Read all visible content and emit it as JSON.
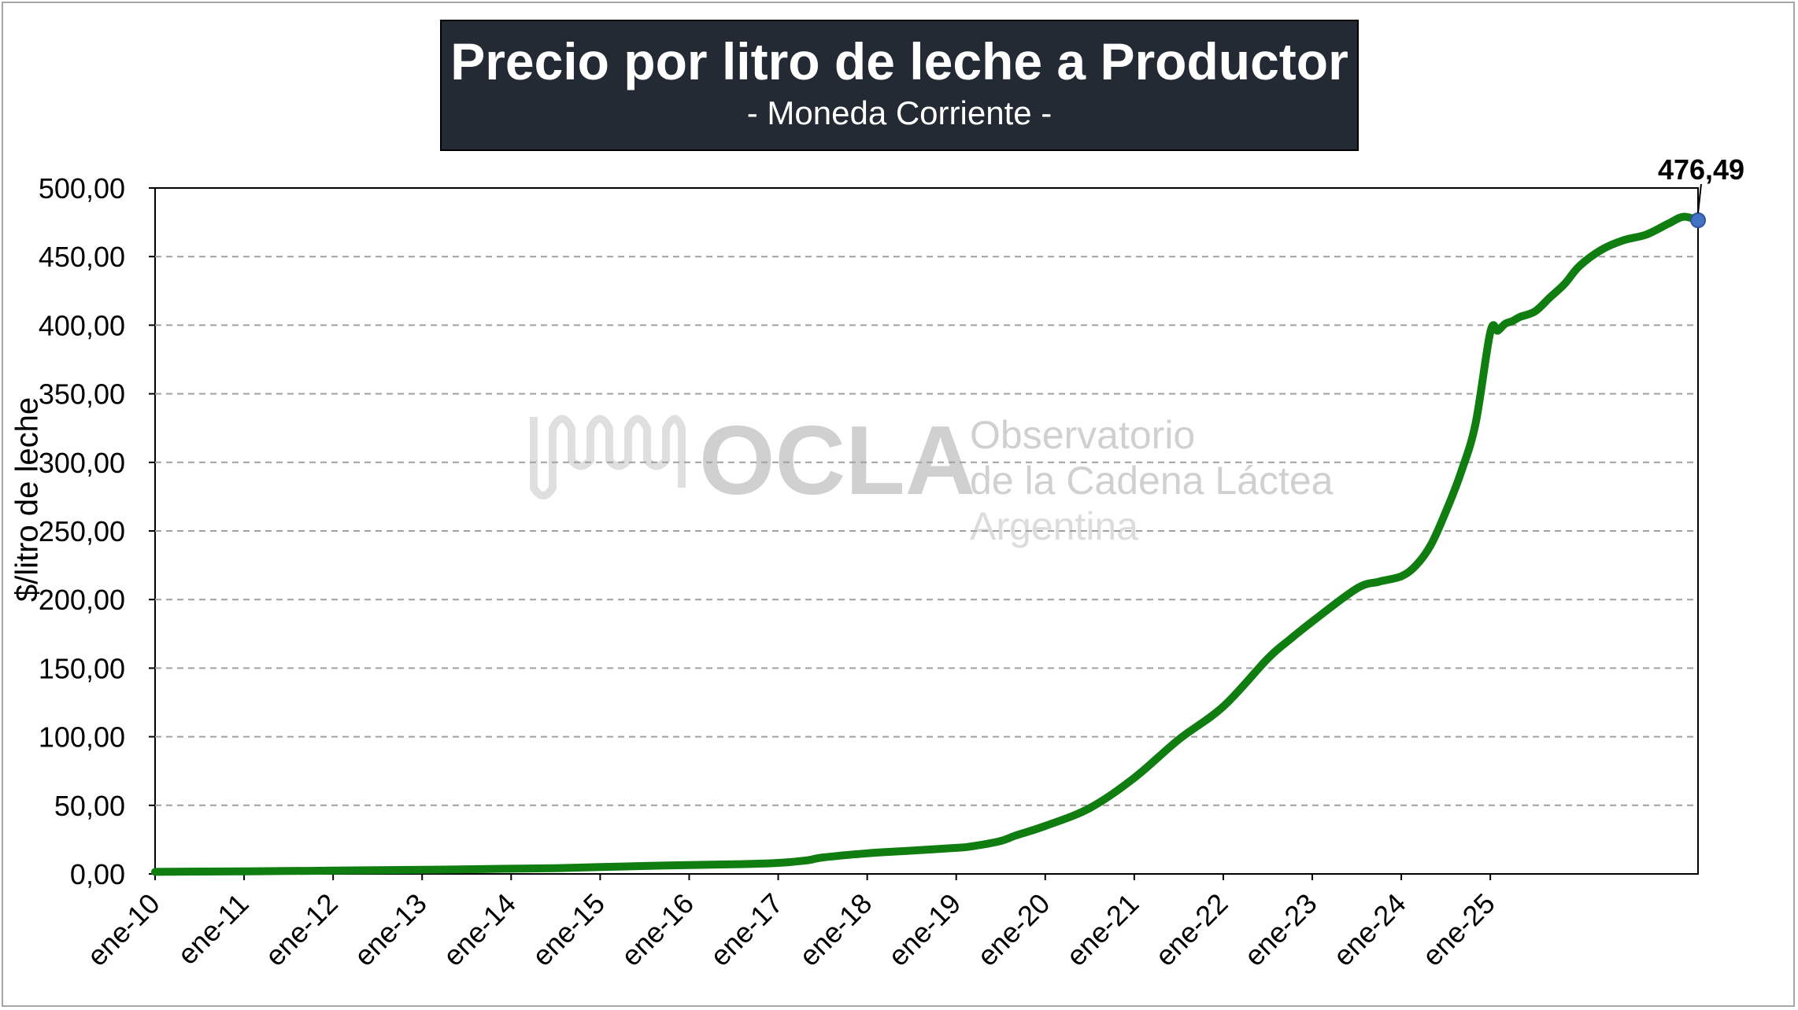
{
  "title": "Precio por litro de leche a Productor",
  "subtitle": "- Moneda Corriente -",
  "watermark": {
    "logo_text": "OCLA",
    "line1": "Observatorio",
    "line2": "de la Cadena Láctea",
    "line3": "Argentina"
  },
  "colors": {
    "line": "#0f7d0f",
    "marker": "#4472c4",
    "title_bg": "#232a33",
    "grid": "#a0a0a0"
  },
  "chart_data": {
    "type": "line",
    "title": "Precio por litro de leche a Productor",
    "subtitle": "- Moneda Corriente -",
    "xlabel": "",
    "ylabel": "$/litro de leche",
    "ylim": [
      0,
      500
    ],
    "yticks": [
      "0,00",
      "50,00",
      "100,00",
      "150,00",
      "200,00",
      "250,00",
      "300,00",
      "350,00",
      "400,00",
      "450,00",
      "500,00"
    ],
    "xticks": [
      "ene-10",
      "ene-11",
      "ene-12",
      "ene-13",
      "ene-14",
      "ene-15",
      "ene-16",
      "ene-17",
      "ene-18",
      "ene-19",
      "ene-20",
      "ene-21",
      "ene-22",
      "ene-23",
      "ene-24",
      "ene-25"
    ],
    "grid": "horizontal dashed",
    "legend": "none",
    "last_point_label": "476,49",
    "series": [
      {
        "x": [
          0,
          6,
          12,
          18,
          24,
          30,
          36,
          42,
          48,
          54,
          60,
          66,
          72,
          78,
          84,
          88,
          90,
          96,
          102,
          108,
          110,
          114,
          116,
          120,
          126,
          132,
          138,
          144,
          150,
          153,
          156,
          162,
          165,
          168,
          170,
          172,
          174,
          176,
          178,
          180,
          181,
          182,
          183,
          184,
          186,
          188,
          190,
          192,
          195,
          198,
          201,
          204,
          206,
          208
        ],
        "y": [
          1.5,
          1.7,
          1.9,
          2.1,
          2.4,
          2.7,
          3.0,
          3.4,
          3.8,
          4.2,
          5.0,
          5.8,
          6.5,
          7.0,
          8,
          10,
          12,
          15,
          17,
          19,
          20,
          24,
          28,
          35,
          48,
          70,
          98,
          122,
          157,
          171,
          184,
          208,
          213,
          217,
          225,
          240,
          264,
          292,
          328,
          395,
          396,
          401,
          403,
          406,
          410,
          420,
          430,
          443,
          455,
          462,
          466,
          474,
          479,
          476.49
        ]
      }
    ]
  }
}
